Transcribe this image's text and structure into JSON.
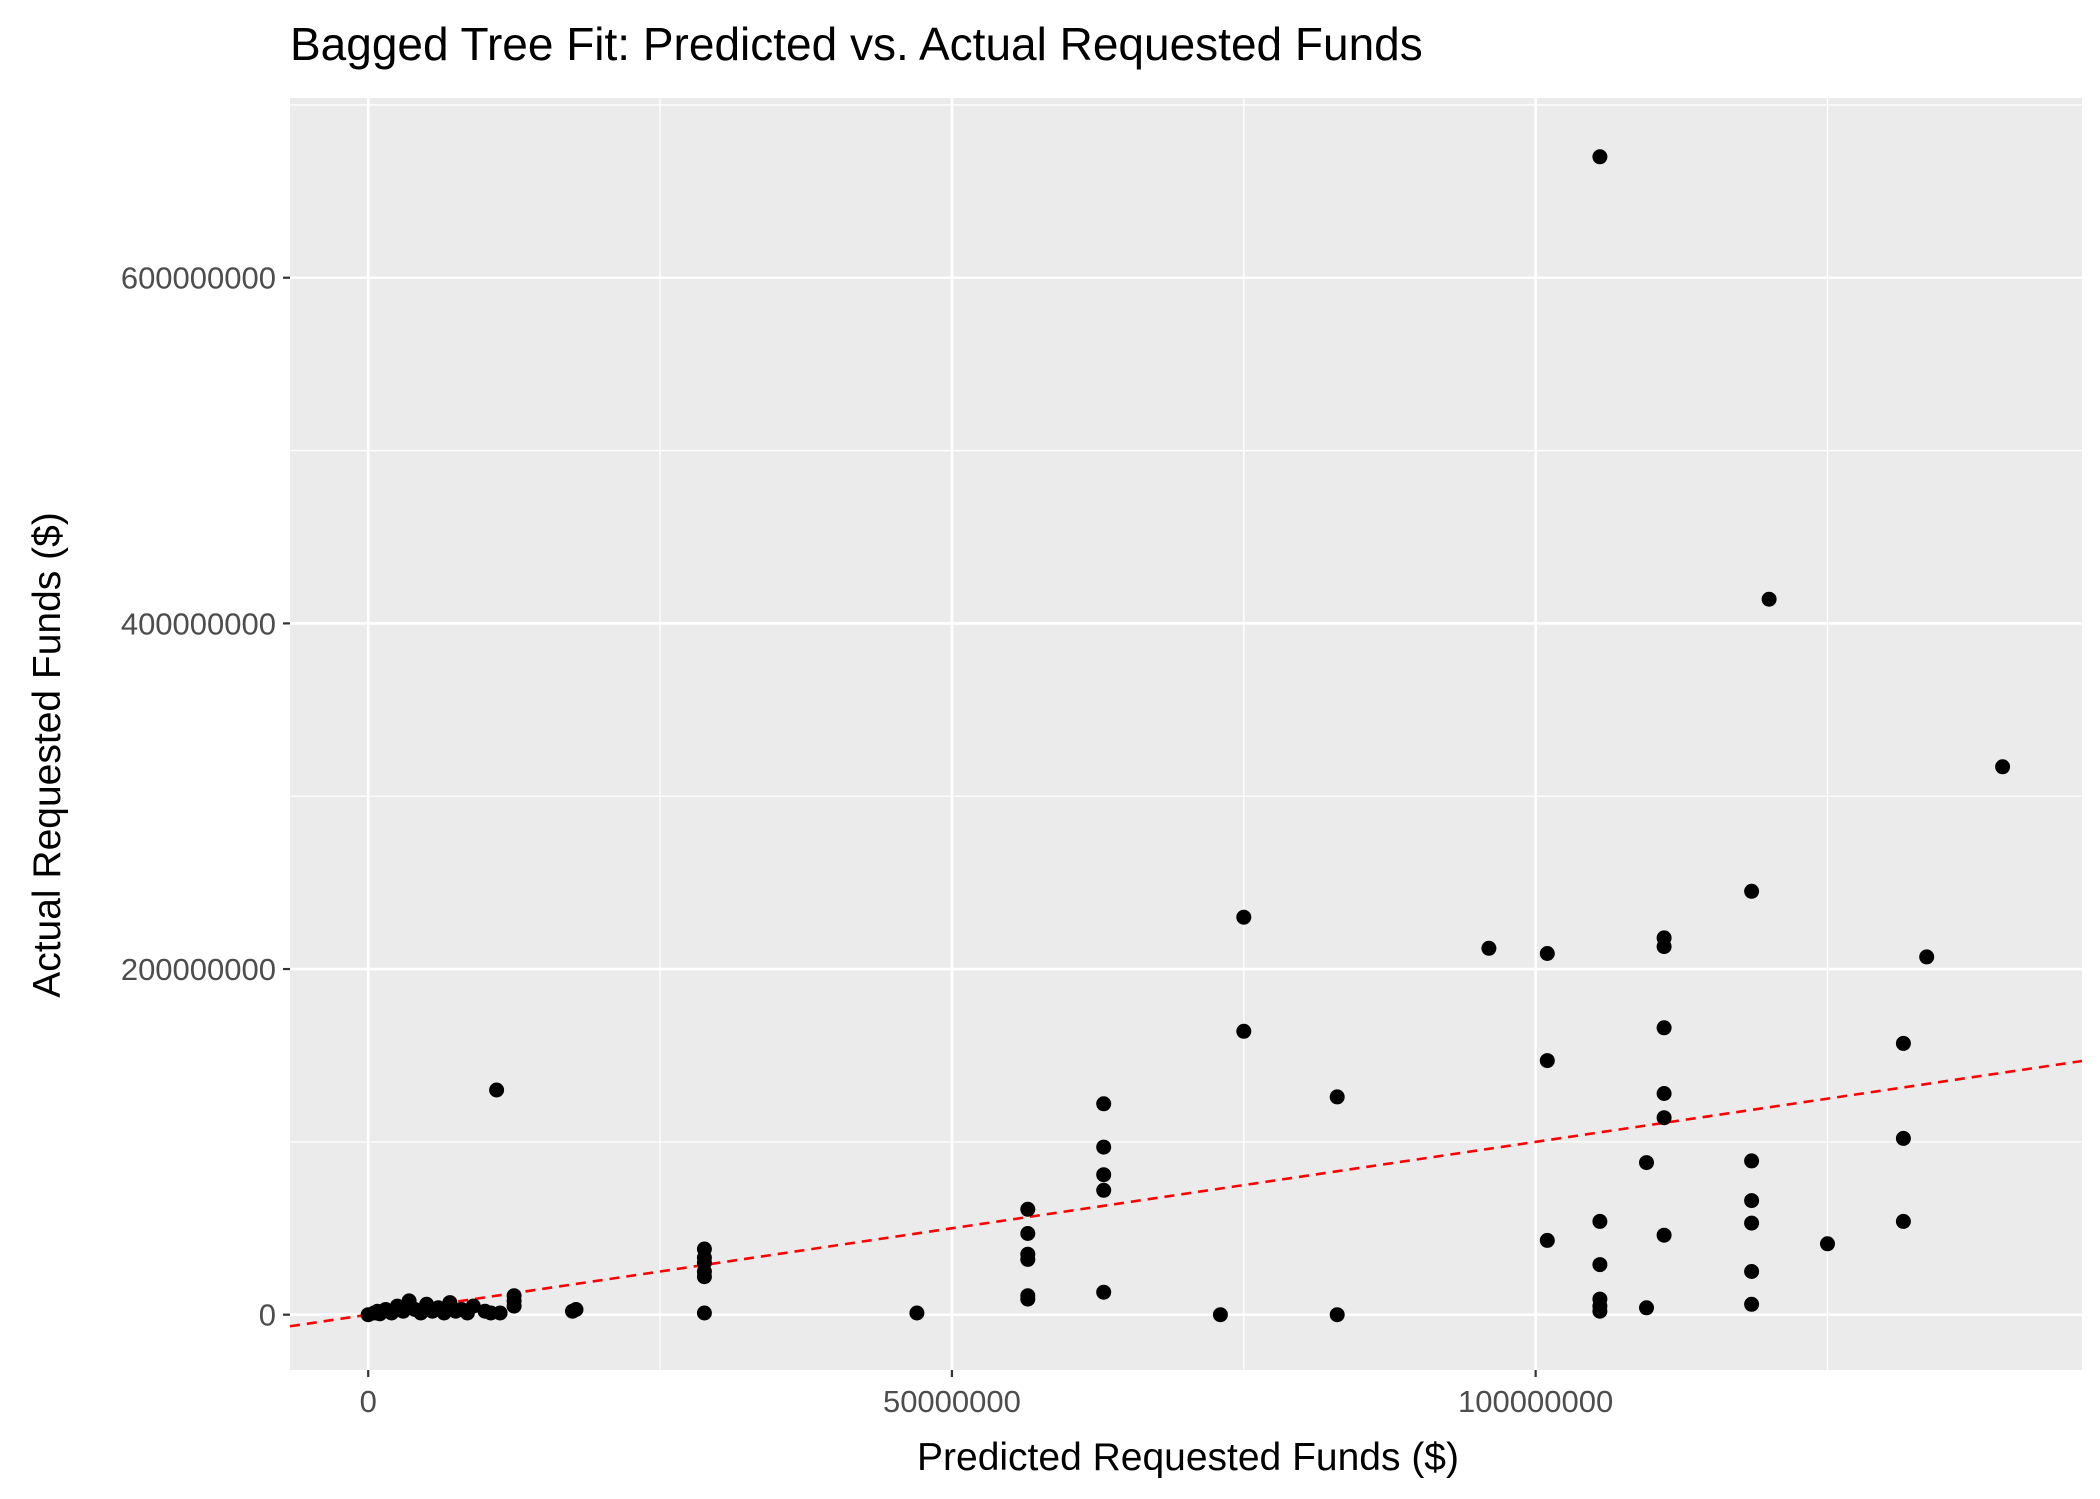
{
  "chart_data": {
    "type": "scatter",
    "title": "Bagged Tree Fit: Predicted vs. Actual Requested Funds",
    "xlabel": "Predicted Requested Funds ($)",
    "ylabel": "Actual Requested Funds ($)",
    "xlim": [
      -6700000,
      146800000
    ],
    "ylim": [
      -32000000,
      704000000
    ],
    "x_ticks": [
      0,
      50000000,
      100000000
    ],
    "x_tick_labels": [
      "0",
      "50000000",
      "100000000"
    ],
    "y_ticks": [
      0,
      200000000,
      400000000,
      600000000
    ],
    "y_tick_labels": [
      "0",
      "200000000",
      "400000000",
      "600000000"
    ],
    "grid": true,
    "legend": "none",
    "reference_line": {
      "type": "identity",
      "slope": 1,
      "intercept": 0,
      "style": "dashed",
      "color": "#ff0000"
    },
    "colors": {
      "panel": "#ebebeb",
      "grid": "#ffffff",
      "points": "#000000"
    },
    "series": [
      {
        "points": [
          [
            0,
            0
          ],
          [
            500000,
            1000000
          ],
          [
            800000,
            2000000
          ],
          [
            1000000,
            500000
          ],
          [
            1500000,
            3000000
          ],
          [
            2000000,
            1000000
          ],
          [
            2500000,
            5000000
          ],
          [
            3000000,
            2000000
          ],
          [
            3500000,
            8000000
          ],
          [
            4000000,
            3000000
          ],
          [
            4500000,
            1000000
          ],
          [
            5000000,
            6000000
          ],
          [
            5500000,
            2000000
          ],
          [
            6000000,
            4000000
          ],
          [
            6500000,
            1000000
          ],
          [
            7000000,
            7000000
          ],
          [
            7500000,
            2000000
          ],
          [
            8000000,
            3000000
          ],
          [
            8500000,
            1000000
          ],
          [
            9000000,
            5000000
          ],
          [
            10000000,
            2000000
          ],
          [
            10500000,
            1000000
          ],
          [
            11000000,
            130000000
          ],
          [
            11300000,
            1000000
          ],
          [
            12500000,
            5000000
          ],
          [
            12500000,
            8000000
          ],
          [
            12500000,
            11000000
          ],
          [
            17500000,
            2000000
          ],
          [
            17800000,
            3000000
          ],
          [
            28800000,
            1000000
          ],
          [
            28800000,
            22000000
          ],
          [
            28800000,
            25000000
          ],
          [
            28800000,
            30000000
          ],
          [
            28800000,
            33000000
          ],
          [
            28800000,
            38000000
          ],
          [
            47000000,
            1000000
          ],
          [
            56500000,
            9000000
          ],
          [
            56500000,
            11000000
          ],
          [
            56500000,
            32000000
          ],
          [
            56500000,
            35000000
          ],
          [
            56500000,
            47000000
          ],
          [
            56500000,
            61000000
          ],
          [
            63000000,
            13000000
          ],
          [
            63000000,
            72000000
          ],
          [
            63000000,
            81000000
          ],
          [
            63000000,
            97000000
          ],
          [
            63000000,
            122000000
          ],
          [
            73000000,
            0
          ],
          [
            75000000,
            164000000
          ],
          [
            75000000,
            230000000
          ],
          [
            83000000,
            0
          ],
          [
            83000000,
            126000000
          ],
          [
            96000000,
            212000000
          ],
          [
            101000000,
            43000000
          ],
          [
            101000000,
            147000000
          ],
          [
            101000000,
            209000000
          ],
          [
            105500000,
            2000000
          ],
          [
            105500000,
            5000000
          ],
          [
            105500000,
            9000000
          ],
          [
            105500000,
            29000000
          ],
          [
            105500000,
            54000000
          ],
          [
            105500000,
            670000000
          ],
          [
            109500000,
            4000000
          ],
          [
            109500000,
            88000000
          ],
          [
            111000000,
            46000000
          ],
          [
            111000000,
            114000000
          ],
          [
            111000000,
            128000000
          ],
          [
            111000000,
            166000000
          ],
          [
            111000000,
            213000000
          ],
          [
            111000000,
            218000000
          ],
          [
            118500000,
            6000000
          ],
          [
            118500000,
            25000000
          ],
          [
            118500000,
            53000000
          ],
          [
            118500000,
            66000000
          ],
          [
            118500000,
            89000000
          ],
          [
            118500000,
            245000000
          ],
          [
            120000000,
            414000000
          ],
          [
            125000000,
            41000000
          ],
          [
            131500000,
            54000000
          ],
          [
            131500000,
            102000000
          ],
          [
            131500000,
            157000000
          ],
          [
            133500000,
            207000000
          ],
          [
            140000000,
            317000000
          ]
        ]
      }
    ]
  }
}
